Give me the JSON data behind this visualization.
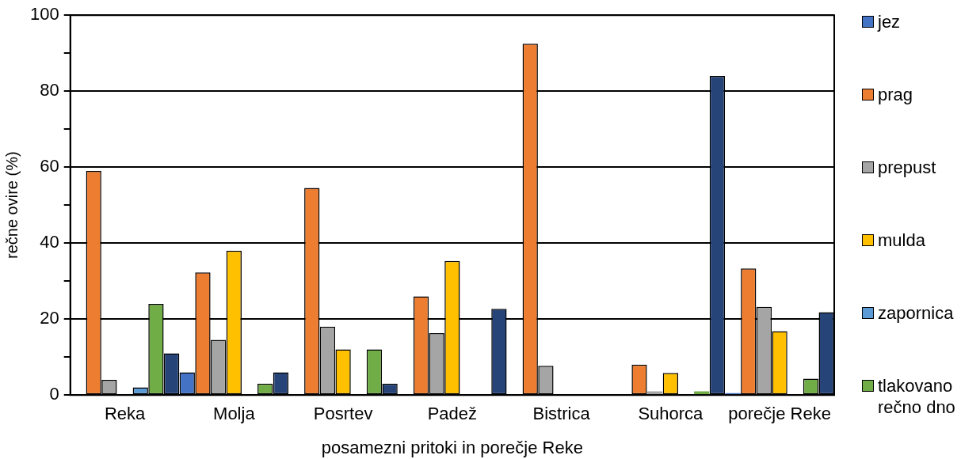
{
  "chart_data": {
    "type": "bar",
    "xlabel": "posamezni pritoki in porečje Reke",
    "ylabel": "rečne ovire (%)",
    "categories": [
      "Reka",
      "Molja",
      "Posrtev",
      "Padež",
      "Bistrica",
      "Suhorca",
      "porečje Reke"
    ],
    "series": [
      {
        "name": "jez",
        "color": "#4472c4",
        "values": [
          0,
          6,
          0,
          0,
          0,
          0,
          0.5
        ]
      },
      {
        "name": "prag",
        "color": "#ed7d31",
        "values": [
          59,
          32.3,
          54.5,
          26,
          92.5,
          8,
          33.3
        ]
      },
      {
        "name": "prepust",
        "color": "#a5a5a5",
        "values": [
          4,
          14.5,
          18,
          16.3,
          7.7,
          1,
          23.2
        ]
      },
      {
        "name": "mulda",
        "color": "#ffc000",
        "values": [
          0,
          38,
          12,
          35.3,
          0,
          5.8,
          16.8
        ]
      },
      {
        "name": "zapornica",
        "color": "#5b9bd5",
        "values": [
          2,
          0,
          0,
          0,
          0,
          0,
          null
        ]
      },
      {
        "name": "tlakovano rečno dno",
        "color": "#70ad47",
        "values": [
          24,
          3,
          12,
          0,
          0,
          1,
          4.3
        ]
      },
      {
        "color": "#264478",
        "values": [
          11,
          6,
          3,
          22.7,
          0,
          84,
          21.8
        ]
      }
    ],
    "ylim": [
      0,
      100
    ],
    "yticks": [
      0,
      {
        "value": 10,
        "label": null
      },
      20,
      {
        "value": 30,
        "label": null
      },
      40,
      {
        "value": 50,
        "label": null
      },
      60,
      {
        "value": 70,
        "label": null
      },
      80,
      {
        "value": 90,
        "label": null
      },
      100
    ],
    "grid": "y",
    "legend": "right"
  }
}
